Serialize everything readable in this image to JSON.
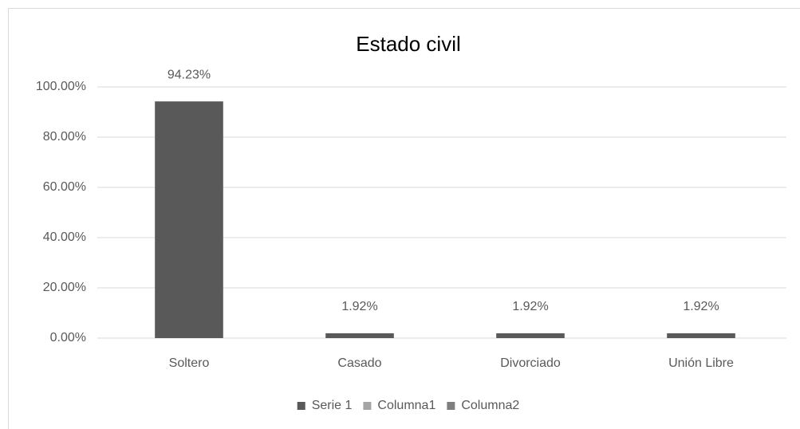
{
  "chart_data": {
    "type": "bar",
    "title": "Estado civil",
    "categories": [
      "Soltero",
      "Casado",
      "Divorciado",
      "Unión Libre"
    ],
    "series": [
      {
        "name": "Serie 1",
        "color": "#595959",
        "values": [
          94.23,
          1.92,
          1.92,
          1.92
        ],
        "value_labels": [
          "94.23%",
          "1.92%",
          "1.92%",
          "1.92%"
        ]
      },
      {
        "name": "Columna1",
        "color": "#a5a5a5",
        "values": [
          null,
          null,
          null,
          null
        ]
      },
      {
        "name": "Columna2",
        "color": "#7f7f7f",
        "values": [
          null,
          null,
          null,
          null
        ]
      }
    ],
    "ylim": [
      0,
      100
    ],
    "yticks": [
      {
        "value": 0,
        "label": "0.00%"
      },
      {
        "value": 20,
        "label": "20.00%"
      },
      {
        "value": 40,
        "label": "40.00%"
      },
      {
        "value": 60,
        "label": "60.00%"
      },
      {
        "value": 80,
        "label": "80.00%"
      },
      {
        "value": 100,
        "label": "100.00%"
      }
    ],
    "grid": true,
    "legend": "bottom"
  }
}
